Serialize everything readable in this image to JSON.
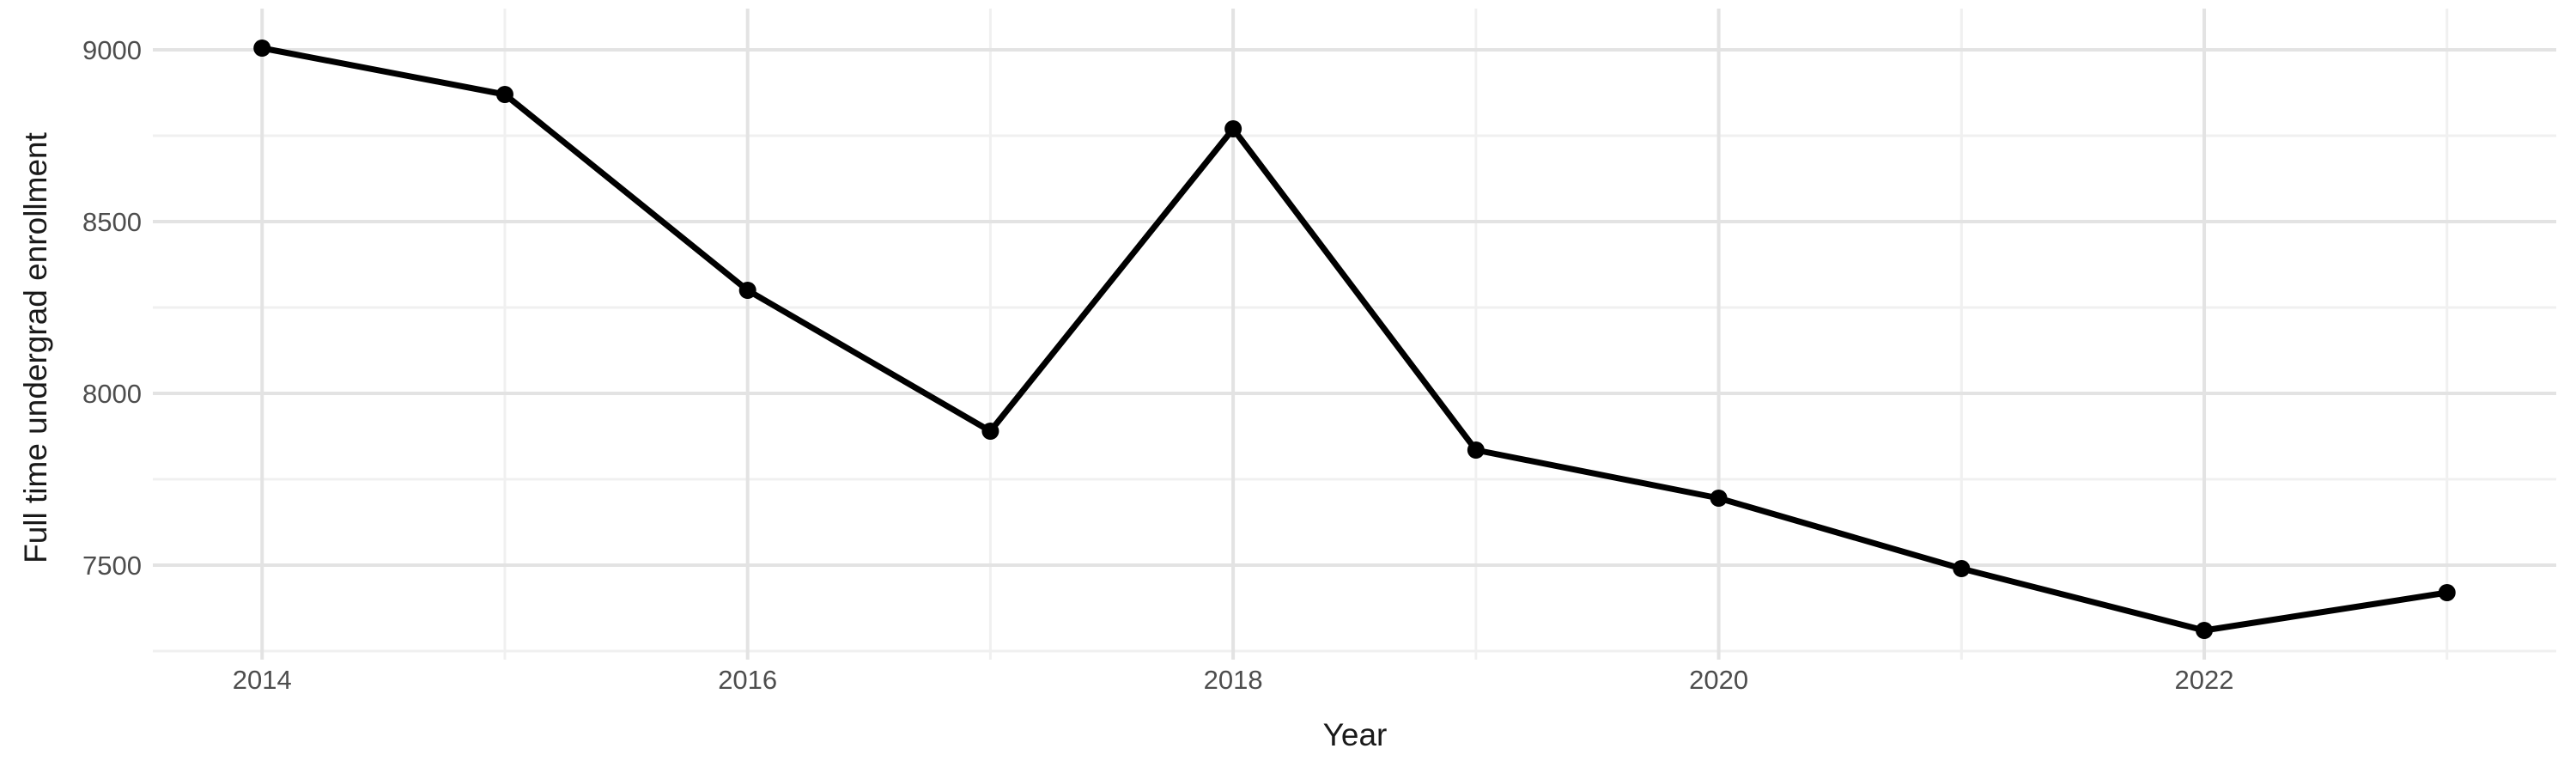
{
  "chart_data": {
    "type": "line",
    "title": "",
    "xlabel": "Year",
    "ylabel": "Full time undergrad enrollment",
    "series": [
      {
        "name": "Full time undergrad enrollment",
        "x": [
          2014,
          2015,
          2016,
          2017,
          2018,
          2019,
          2020,
          2021,
          2022,
          2023
        ],
        "values": [
          9005,
          8870,
          8300,
          7890,
          8770,
          7835,
          7695,
          7490,
          7310,
          7420
        ]
      }
    ],
    "xlim": [
      2013.55,
      2023.45
    ],
    "ylim": [
      7225,
      9120
    ],
    "xticks_major": [
      2014,
      2016,
      2018,
      2020,
      2022
    ],
    "xticks_minor": [
      2015,
      2017,
      2019,
      2021,
      2023
    ],
    "yticks_major": [
      7500,
      8000,
      8500,
      9000
    ],
    "yticks_minor": [
      7250,
      7750,
      8250,
      8750
    ],
    "grid": "major+minor",
    "legend_position": "none",
    "marker": "filled-circle",
    "colors": {
      "line": "#000000",
      "point": "#000000",
      "grid_major": "#e3e3e3",
      "grid_minor": "#f0f0f0",
      "tick_label": "#4d4d4d",
      "axis_title": "#1a1a1a",
      "background": "#ffffff"
    }
  }
}
